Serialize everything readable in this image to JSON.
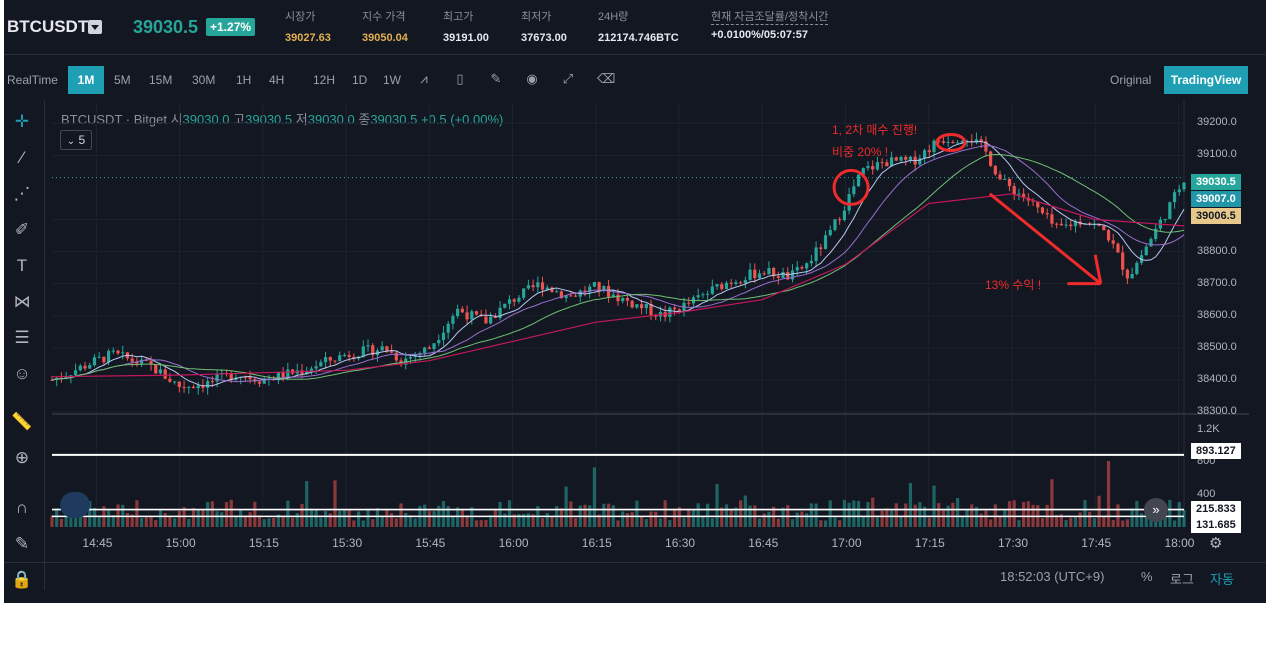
{
  "ticker": {
    "symbol": "BTCUSDT",
    "last_price": "39030.5",
    "change": "+1.27%",
    "stats": [
      {
        "label": "시장가",
        "value": "39027.63",
        "tone": "y",
        "x": 281
      },
      {
        "label": "지수 가격",
        "value": "39050.04",
        "tone": "y",
        "x": 358
      },
      {
        "label": "최고가",
        "value": "39191.00",
        "tone": "w",
        "x": 439
      },
      {
        "label": "최저가",
        "value": "37673.00",
        "tone": "w",
        "x": 517
      },
      {
        "label": "24H량",
        "value": "212174.746BTC",
        "tone": "w",
        "x": 594
      },
      {
        "label": "현재 자금조달률/정착시간",
        "value": "+0.0100%/05:07:57",
        "tone": "w",
        "x": 707
      }
    ]
  },
  "toolbar": {
    "timeframes": [
      "RealTime",
      "1M",
      "5M",
      "15M",
      "30M",
      "1H",
      "4H",
      "12H",
      "1D",
      "1W"
    ],
    "active": "1M",
    "original_label": "Original",
    "tradingview_label": "TradingView"
  },
  "legend": {
    "title": "BTCUSDT · Bitget",
    "open_label": "시",
    "open": "39030.0",
    "high_label": "고",
    "high": "39030.5",
    "low_label": "저",
    "low": "39030.0",
    "close_label": "종",
    "close": "39030.5",
    "change": "+0.5 (+0.00%)",
    "indicator_count": "5"
  },
  "annotations": {
    "entry_line1": "1, 2차 매수 진행!",
    "entry_line2": "비중 20% !",
    "profit": "13% 수익 !"
  },
  "price_labels": {
    "last": "39030.5",
    "ma": "39007.0",
    "other": "39006.5",
    "vol_line": "893.127",
    "vol_ma": "215.833",
    "vol_low": "131.685"
  },
  "bottom_bar": {
    "clock": "18:52:03 (UTC+9)",
    "percent": "%",
    "log": "로그",
    "auto": "자동"
  },
  "colors": {
    "up": "#26a69a",
    "down": "#ef5350",
    "accent": "#1e9fb4",
    "annotation": "#ef2b2b"
  },
  "chart_data": {
    "type": "candlestick",
    "y_ticks": [
      38300,
      38400,
      38500,
      38600,
      38700,
      38800,
      38900,
      39100,
      39200
    ],
    "ylim": [
      38300,
      39260
    ],
    "volume_ticks": [
      "1.2K",
      "800",
      "400"
    ],
    "x_ticks": [
      "14:45",
      "15:00",
      "15:15",
      "15:30",
      "15:45",
      "16:00",
      "16:15",
      "16:30",
      "16:45",
      "17:00",
      "17:15",
      "17:30",
      "17:45",
      "18:00"
    ],
    "x_range": [
      "14:37",
      "18:01"
    ],
    "price_path": [
      [
        "14:37",
        38400
      ],
      [
        "14:45",
        38460
      ],
      [
        "14:48",
        38480
      ],
      [
        "14:55",
        38440
      ],
      [
        "15:00",
        38380
      ],
      [
        "15:05",
        38390
      ],
      [
        "15:10",
        38420
      ],
      [
        "15:15",
        38400
      ],
      [
        "15:22",
        38430
      ],
      [
        "15:30",
        38480
      ],
      [
        "15:37",
        38500
      ],
      [
        "15:40",
        38460
      ],
      [
        "15:45",
        38500
      ],
      [
        "15:50",
        38620
      ],
      [
        "15:55",
        38580
      ],
      [
        "16:00",
        38650
      ],
      [
        "16:05",
        38700
      ],
      [
        "16:10",
        38660
      ],
      [
        "16:15",
        38690
      ],
      [
        "16:20",
        38650
      ],
      [
        "16:27",
        38600
      ],
      [
        "16:32",
        38640
      ],
      [
        "16:38",
        38700
      ],
      [
        "16:45",
        38740
      ],
      [
        "16:50",
        38720
      ],
      [
        "16:53",
        38760
      ],
      [
        "16:57",
        38850
      ],
      [
        "17:00",
        38950
      ],
      [
        "17:03",
        39050
      ],
      [
        "17:07",
        39080
      ],
      [
        "17:12",
        39080
      ],
      [
        "17:17",
        39150
      ],
      [
        "17:22",
        39160
      ],
      [
        "17:25",
        39120
      ],
      [
        "17:28",
        39020
      ],
      [
        "17:33",
        38960
      ],
      [
        "17:38",
        38870
      ],
      [
        "17:43",
        38900
      ],
      [
        "17:47",
        38860
      ],
      [
        "17:51",
        38720
      ],
      [
        "17:55",
        38840
      ],
      [
        "17:59",
        38960
      ],
      [
        "18:01",
        39030
      ]
    ],
    "ma_slow": [
      [
        "14:37",
        38410
      ],
      [
        "15:00",
        38415
      ],
      [
        "15:30",
        38430
      ],
      [
        "15:45",
        38460
      ],
      [
        "16:00",
        38520
      ],
      [
        "16:15",
        38580
      ],
      [
        "16:30",
        38610
      ],
      [
        "16:45",
        38650
      ],
      [
        "17:00",
        38760
      ],
      [
        "17:15",
        38950
      ],
      [
        "17:30",
        38980
      ],
      [
        "17:45",
        38900
      ],
      [
        "18:01",
        38880
      ]
    ],
    "volume_levels": [
      893.127,
      215.833,
      131.685
    ]
  }
}
